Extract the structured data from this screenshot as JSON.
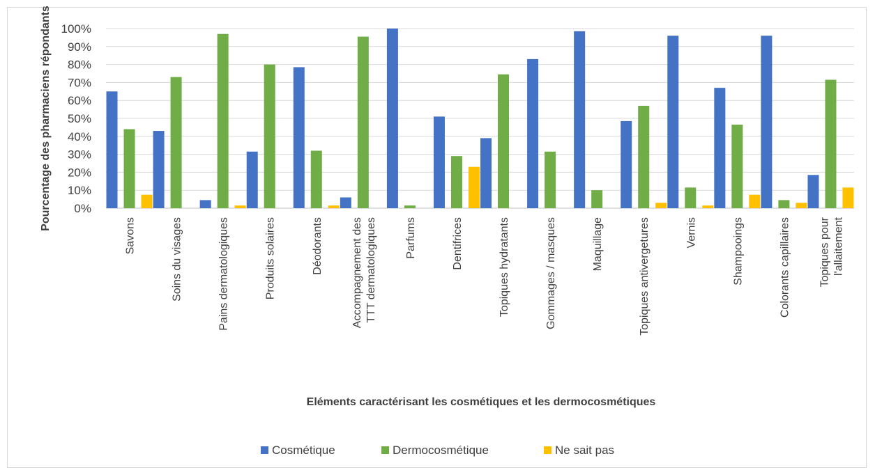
{
  "chart_data": {
    "type": "bar",
    "xlabel": "Eléments caractérisant les cosmétiques et les dermocosmétiques",
    "ylabel": "Pourcentage des pharmaciens répondants",
    "ylim": [
      0,
      100
    ],
    "yticks": [
      "0%",
      "10%",
      "20%",
      "30%",
      "40%",
      "50%",
      "60%",
      "70%",
      "80%",
      "90%",
      "100%"
    ],
    "grid": true,
    "legend_position": "bottom",
    "categories": [
      [
        "Savons"
      ],
      [
        "Soins du visages"
      ],
      [
        "Pains dermatologiques"
      ],
      [
        "Produits solaires"
      ],
      [
        "Déodorants"
      ],
      [
        "Accompagnement des",
        "TTT dermatologiques"
      ],
      [
        "Parfums"
      ],
      [
        "Dentifrices"
      ],
      [
        "Topiques hydratants"
      ],
      [
        "Gommages / masques"
      ],
      [
        "Maquillage"
      ],
      [
        "Topiques antivergetures"
      ],
      [
        "Vernis"
      ],
      [
        "Shampooings"
      ],
      [
        "Colorants capillaires"
      ],
      [
        "Topiques pour",
        "l'allaitement"
      ]
    ],
    "series": [
      {
        "name": "Cosmétique",
        "color": "#4472c4",
        "values": [
          65,
          43,
          4.5,
          31.5,
          78.5,
          6,
          100,
          51,
          39,
          83,
          98.5,
          48.5,
          96,
          67,
          96,
          18.5
        ]
      },
      {
        "name": "Dermocosmétique",
        "color": "#70ad47",
        "values": [
          44,
          73,
          97,
          80,
          32,
          95.5,
          1.5,
          29,
          74.5,
          31.5,
          10,
          57,
          11.5,
          46.5,
          4.5,
          71.5
        ]
      },
      {
        "name": "Ne sait pas",
        "color": "#ffc000",
        "values": [
          7.5,
          0,
          1.5,
          0,
          1.5,
          0,
          0,
          23,
          0,
          0,
          0,
          3,
          1.5,
          7.5,
          3,
          11.5
        ]
      }
    ]
  }
}
